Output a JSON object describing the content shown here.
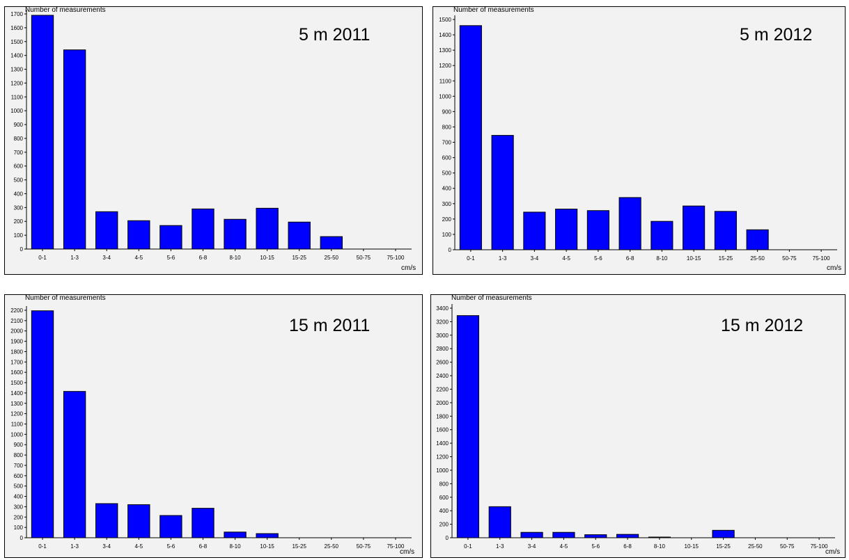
{
  "y_axis_label": "Number of measurements",
  "x_unit": "cm/s",
  "colors": {
    "bar": "#0000ff",
    "bar_stroke": "#000000",
    "panel_bg": "#f2f2f2"
  },
  "chart_data": [
    {
      "type": "bar",
      "title": "5 m 2011",
      "ylabel": "Number of measurements",
      "xlabel": "cm/s",
      "categories": [
        "0-1",
        "1-3",
        "3-4",
        "4-5",
        "5-6",
        "6-8",
        "8-10",
        "10-15",
        "15-25",
        "25-50",
        "50-75",
        "75-100"
      ],
      "values": [
        1690,
        1440,
        270,
        205,
        170,
        290,
        215,
        295,
        195,
        90,
        0,
        0
      ],
      "ylim": [
        0,
        1700
      ],
      "ytick_step": 100,
      "grid": false
    },
    {
      "type": "bar",
      "title": "5 m 2012",
      "ylabel": "Number of measurements",
      "xlabel": "cm/s",
      "categories": [
        "0-1",
        "1-3",
        "3-4",
        "4-5",
        "5-6",
        "6-8",
        "8-10",
        "10-15",
        "15-25",
        "25-50",
        "50-75",
        "75-100"
      ],
      "values": [
        1460,
        745,
        245,
        265,
        255,
        340,
        185,
        285,
        250,
        130,
        0,
        0
      ],
      "ylim": [
        0,
        1500
      ],
      "ytick_step": 100,
      "grid": false
    },
    {
      "type": "bar",
      "title": "15 m 2011",
      "ylabel": "Number of measurements",
      "xlabel": "cm/s",
      "categories": [
        "0-1",
        "1-3",
        "3-4",
        "4-5",
        "5-6",
        "6-8",
        "8-10",
        "10-15",
        "15-25",
        "25-50",
        "50-75",
        "75-100"
      ],
      "values": [
        2195,
        1415,
        330,
        320,
        215,
        285,
        55,
        40,
        0,
        0,
        0,
        0
      ],
      "ylim": [
        0,
        2200
      ],
      "ytick_step": 100,
      "grid": false
    },
    {
      "type": "bar",
      "title": "15 m 2012",
      "ylabel": "Number of measurements",
      "xlabel": "cm/s",
      "categories": [
        "0-1",
        "1-3",
        "3-4",
        "4-5",
        "5-6",
        "6-8",
        "8-10",
        "10-15",
        "15-25",
        "25-50",
        "50-75",
        "75-100"
      ],
      "values": [
        3290,
        460,
        80,
        80,
        45,
        50,
        10,
        0,
        110,
        0,
        0,
        0
      ],
      "ylim": [
        0,
        3400
      ],
      "ytick_step": 200,
      "grid": false
    }
  ]
}
